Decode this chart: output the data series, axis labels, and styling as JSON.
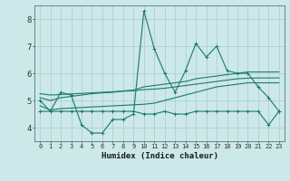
{
  "xlabel": "Humidex (Indice chaleur)",
  "x": [
    0,
    1,
    2,
    3,
    4,
    5,
    6,
    7,
    8,
    9,
    10,
    11,
    12,
    13,
    14,
    15,
    16,
    17,
    18,
    19,
    20,
    21,
    22,
    23
  ],
  "line1": [
    5.0,
    4.6,
    5.3,
    5.2,
    4.1,
    3.8,
    3.8,
    4.3,
    4.3,
    4.5,
    8.3,
    6.9,
    6.0,
    5.3,
    6.1,
    7.1,
    6.6,
    7.0,
    6.1,
    6.0,
    6.0,
    5.5,
    5.1,
    4.6
  ],
  "line2": [
    4.6,
    4.6,
    4.6,
    4.6,
    4.6,
    4.6,
    4.6,
    4.6,
    4.6,
    4.6,
    4.5,
    4.5,
    4.6,
    4.5,
    4.5,
    4.6,
    4.6,
    4.6,
    4.6,
    4.6,
    4.6,
    4.6,
    4.1,
    4.6
  ],
  "line3_low": [
    4.8,
    4.65,
    4.7,
    4.72,
    4.74,
    4.76,
    4.78,
    4.8,
    4.82,
    4.84,
    4.86,
    4.9,
    5.0,
    5.1,
    5.2,
    5.3,
    5.4,
    5.5,
    5.55,
    5.6,
    5.65,
    5.65,
    5.65,
    5.65
  ],
  "line3_high": [
    5.1,
    5.0,
    5.1,
    5.15,
    5.2,
    5.25,
    5.28,
    5.3,
    5.35,
    5.38,
    5.5,
    5.55,
    5.6,
    5.65,
    5.7,
    5.8,
    5.85,
    5.9,
    5.95,
    6.0,
    6.05,
    6.05,
    6.05,
    6.05
  ],
  "line4": [
    5.25,
    5.2,
    5.22,
    5.24,
    5.26,
    5.28,
    5.3,
    5.32,
    5.34,
    5.36,
    5.4,
    5.42,
    5.45,
    5.5,
    5.55,
    5.6,
    5.65,
    5.7,
    5.75,
    5.8,
    5.82,
    5.83,
    5.83,
    5.83
  ],
  "line_color": "#1a7a6e",
  "bg_color": "#cce8e8",
  "grid_color": "#aacccc",
  "ylim": [
    3.5,
    8.5
  ],
  "xlim": [
    -0.5,
    23.5
  ]
}
